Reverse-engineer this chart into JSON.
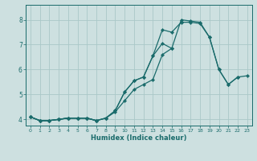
{
  "title": "",
  "xlabel": "Humidex (Indice chaleur)",
  "ylabel": "",
  "background_color": "#cde0e0",
  "grid_color": "#aac8c8",
  "line_color": "#1a6b6b",
  "xlim": [
    -0.5,
    23.5
  ],
  "ylim": [
    3.75,
    8.6
  ],
  "yticks": [
    4,
    5,
    6,
    7,
    8
  ],
  "xticks": [
    0,
    1,
    2,
    3,
    4,
    5,
    6,
    7,
    8,
    9,
    10,
    11,
    12,
    13,
    14,
    15,
    16,
    17,
    18,
    19,
    20,
    21,
    22,
    23
  ],
  "lines": [
    {
      "x": [
        0,
        1,
        2,
        3,
        4,
        5,
        6,
        7
      ],
      "y": [
        4.1,
        3.95,
        3.95,
        4.0,
        4.05,
        4.05,
        4.05,
        3.95
      ]
    },
    {
      "x": [
        0,
        1,
        2,
        3,
        4,
        5,
        6,
        7,
        8,
        9,
        10,
        11,
        12,
        13,
        14,
        15
      ],
      "y": [
        4.1,
        3.95,
        3.95,
        4.0,
        4.05,
        4.05,
        4.05,
        3.95,
        4.05,
        4.3,
        4.75,
        5.2,
        5.4,
        5.6,
        6.6,
        6.85
      ]
    },
    {
      "x": [
        0,
        1,
        2,
        3,
        4,
        5,
        6,
        7,
        8,
        9,
        10,
        11,
        12,
        13,
        14,
        15,
        16,
        17,
        18,
        19,
        20,
        21,
        22
      ],
      "y": [
        4.1,
        3.95,
        3.95,
        4.0,
        4.05,
        4.05,
        4.05,
        3.95,
        4.05,
        4.35,
        5.1,
        5.55,
        5.7,
        6.55,
        7.6,
        7.5,
        7.9,
        7.9,
        7.85,
        7.3,
        6.0,
        5.4,
        5.7
      ]
    },
    {
      "x": [
        0,
        1,
        2,
        3,
        4,
        5,
        6,
        7,
        8,
        9,
        10,
        11,
        12,
        13,
        14,
        15,
        16,
        17,
        18,
        19,
        20,
        21,
        22,
        23
      ],
      "y": [
        4.1,
        3.95,
        3.95,
        4.0,
        4.05,
        4.05,
        4.05,
        3.95,
        4.05,
        4.35,
        5.1,
        5.55,
        5.7,
        6.55,
        7.05,
        6.85,
        8.0,
        7.95,
        7.9,
        7.3,
        6.0,
        5.4,
        5.7,
        5.75
      ]
    }
  ]
}
